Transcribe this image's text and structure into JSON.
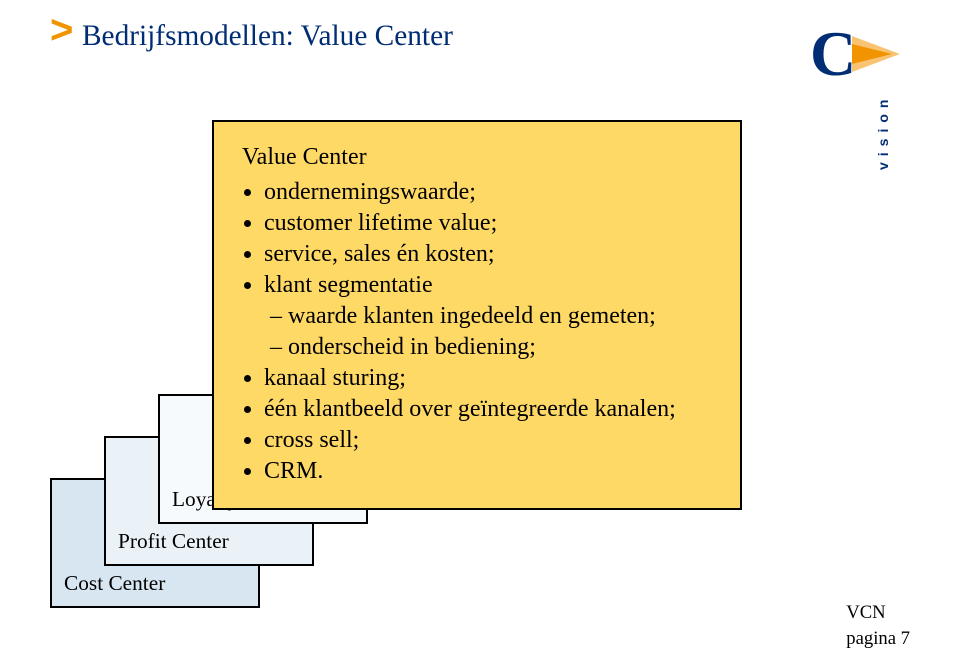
{
  "colors": {
    "title": "#002d73",
    "chevron": "#f29400",
    "logo_c": "#002d73",
    "logo_wedge": "#f29400",
    "logo_text": "#002d73",
    "card_cost_bg": "#d7e6f1",
    "card_profit_bg": "#eaf2f8",
    "card_loyalty_bg": "#f7fafc",
    "card_value_bg": "#ffd966",
    "border": "#000000",
    "body_text": "#000000",
    "footer_text": "#000000"
  },
  "fonts": {
    "title_size_pt": 22,
    "chevron_size_pt": 30,
    "body_size_pt": 18,
    "card_label_size_pt": 16,
    "footer_size_pt": 14,
    "logo_text_size_pt": 14
  },
  "header": {
    "chevron": ">",
    "title": "Bedrijfsmodellen: Value Center"
  },
  "logo": {
    "letter": "C",
    "text": "vision"
  },
  "value_card": {
    "title": "Value Center",
    "bullets": [
      {
        "text": "ondernemingswaarde;"
      },
      {
        "text": "customer lifetime value;"
      },
      {
        "text": "service, sales én kosten;"
      },
      {
        "text": "klant segmentatie",
        "sub": [
          "waarde klanten ingedeeld en gemeten;",
          "onderscheid in bediening;"
        ]
      },
      {
        "text": "kanaal sturing;"
      },
      {
        "text": "één klantbeeld over geïntegreerde kanalen;"
      },
      {
        "text": "cross sell;"
      },
      {
        "text": "CRM."
      }
    ]
  },
  "stack_cards": {
    "cost": "Cost Center",
    "profit": "Profit Center",
    "loyalty": "Loyalty Center"
  },
  "footer": {
    "line1": "VCN",
    "line2": "pagina 7"
  }
}
